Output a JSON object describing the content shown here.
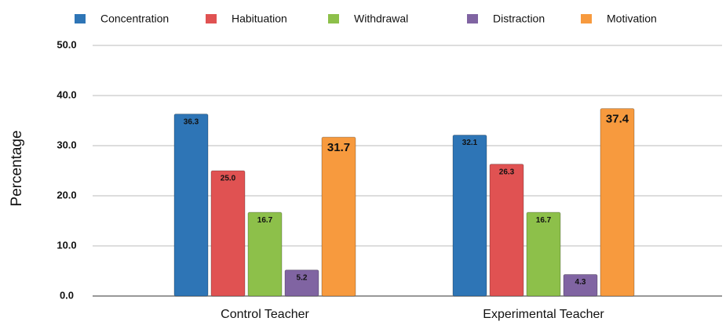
{
  "chart_data": {
    "type": "bar",
    "y_label": "Percentage",
    "categories": [
      "Control Teacher",
      "Experimental Teacher"
    ],
    "series": [
      {
        "name": "Concentration",
        "color": "#2e75b6",
        "values": [
          36.3,
          32.1
        ],
        "value_labels": [
          "36.3",
          "32.1"
        ]
      },
      {
        "name": "Habituation",
        "color": "#e05252",
        "values": [
          25,
          26.3
        ],
        "value_labels": [
          "25.0",
          "26.3"
        ]
      },
      {
        "name": "Withdrawal",
        "color": "#8dc04a",
        "values": [
          16.7,
          16.7
        ],
        "value_labels": [
          "16.7",
          "16.7"
        ]
      },
      {
        "name": "Distraction",
        "color": "#8064a2",
        "values": [
          5.2,
          4.3
        ],
        "value_labels": [
          "5.2",
          "4.3"
        ]
      },
      {
        "name": "Motivation",
        "color": "#f79a3e",
        "values": [
          31.7,
          37.4
        ],
        "value_labels": [
          "31.7",
          "37.4"
        ]
      }
    ],
    "ylim": [
      0,
      50
    ],
    "yticks": [
      {
        "value": 0,
        "label": "0.0"
      },
      {
        "value": 10,
        "label": "10.0"
      },
      {
        "value": 20,
        "label": "20.0"
      },
      {
        "value": 30,
        "label": "30.0"
      },
      {
        "value": 40,
        "label": "40.0"
      },
      {
        "value": 50,
        "label": "50.0"
      }
    ],
    "grid": true
  }
}
